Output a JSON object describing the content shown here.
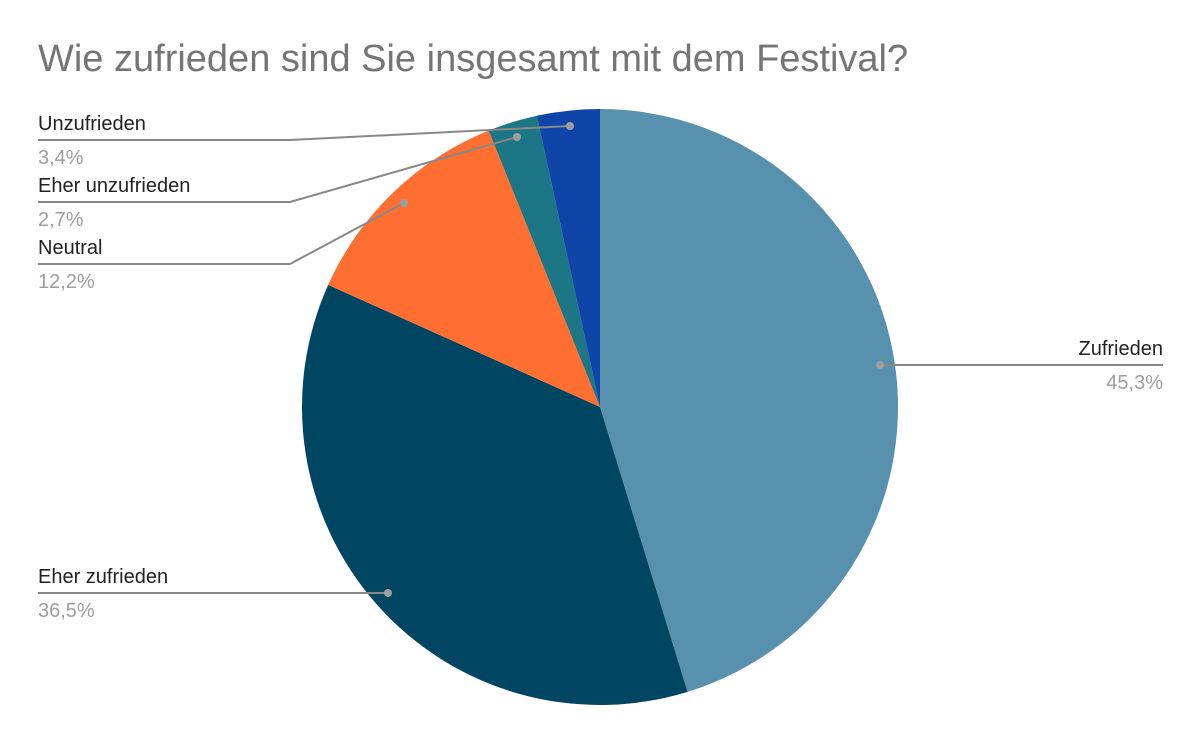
{
  "chart_data": {
    "type": "pie",
    "title": "Wie zufrieden sind Sie insgesamt mit dem Festival?",
    "start_angle": "12 o'clock, clockwise",
    "slices": [
      {
        "label": "Zufrieden",
        "value": 45.3,
        "display": "45,3%",
        "color": "#5891ad"
      },
      {
        "label": "Eher zufrieden",
        "value": 36.5,
        "display": "36,5%",
        "color": "#004561"
      },
      {
        "label": "Neutral",
        "value": 12.2,
        "display": "12,2%",
        "color": "#ff6f31"
      },
      {
        "label": "Eher unzufrieden",
        "value": 2.7,
        "display": "2,7%",
        "color": "#1c7685"
      },
      {
        "label": "Unzufrieden",
        "value": 3.4,
        "display": "3,4%",
        "color": "#0f45a8"
      }
    ],
    "legend": "callout labels"
  }
}
